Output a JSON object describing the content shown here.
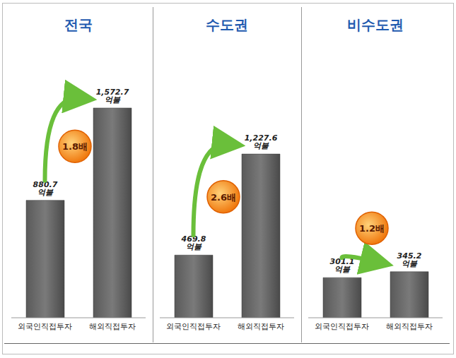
{
  "chart_data": [
    {
      "type": "bar",
      "title": "전국",
      "categories": [
        "외국인직접투자",
        "해외직접투자"
      ],
      "values": [
        880.7,
        1572.7
      ],
      "value_labels": [
        "880.7 억불",
        "1,572.7 억불"
      ],
      "annotations": [
        "1.8배"
      ],
      "color": "#7a7a7a",
      "ylim": [
        0,
        1800
      ],
      "tick_labels": false,
      "data_labels": true
    },
    {
      "type": "bar",
      "title": "수도권",
      "categories": [
        "외국인직접투자",
        "해외직접투자"
      ],
      "values": [
        469.8,
        1227.6
      ],
      "value_labels": [
        "469.8 억불",
        "1,227.6 억불"
      ],
      "annotations": [
        "2.6배"
      ],
      "color": "#7a7a7a",
      "ylim": [
        0,
        1800
      ],
      "tick_labels": false,
      "data_labels": true
    },
    {
      "type": "bar",
      "title": "비수도권",
      "categories": [
        "외국인직접투자",
        "해외직접투자"
      ],
      "values": [
        301.1,
        345.2
      ],
      "value_labels": [
        "301.1 억불",
        "345.2 억불"
      ],
      "annotations": [
        "1.2배"
      ],
      "color": "#7a7a7a",
      "ylim": [
        0,
        1800
      ],
      "tick_labels": false,
      "data_labels": true
    }
  ]
}
